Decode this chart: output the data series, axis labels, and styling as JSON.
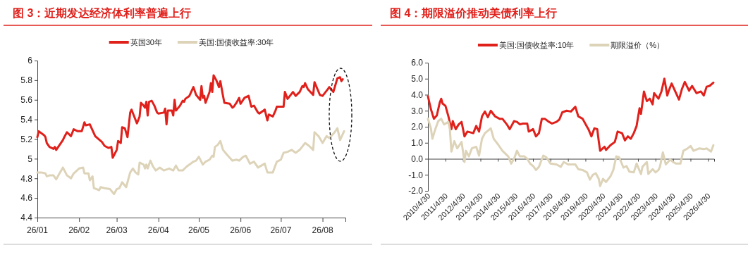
{
  "chart_data": [
    {
      "type": "line",
      "title": "图 3：近期发达经济体利率普遍上行",
      "legend": "top",
      "grid": false,
      "marker": "none",
      "line_style": "solid",
      "xlim": [
        "2026-01-01",
        "2026-08-18"
      ],
      "xticks": [
        {
          "value": "2026-01-01",
          "label": "26/01"
        },
        {
          "value": "2026-02-01",
          "label": "26/02"
        },
        {
          "value": "2026-03-01",
          "label": "26/03"
        },
        {
          "value": "2026-04-01",
          "label": "26/04"
        },
        {
          "value": "2026-05-01",
          "label": "26/05"
        },
        {
          "value": "2026-06-01",
          "label": "26/06"
        },
        {
          "value": "2026-07-01",
          "label": "26/07"
        },
        {
          "value": "2026-08-01",
          "label": "26/08"
        }
      ],
      "ylim": [
        4.4,
        6
      ],
      "yticks": [
        4.4,
        4.6,
        4.8,
        5,
        5.2,
        5.4,
        5.6,
        5.8,
        6
      ],
      "series": [
        {
          "name": "英国30年",
          "color": "#e0201b",
          "x": [
            "2026-01-01",
            "2026-01-02",
            "2026-01-06",
            "2026-01-07",
            "2026-01-08",
            "2026-01-10",
            "2026-01-13",
            "2026-01-14",
            "2026-01-15",
            "2026-01-20",
            "2026-01-21",
            "2026-01-23",
            "2026-01-26",
            "2026-01-28",
            "2026-01-31",
            "2026-02-03",
            "2026-02-05",
            "2026-02-06",
            "2026-02-09",
            "2026-02-13",
            "2026-02-18",
            "2026-02-20",
            "2026-02-23",
            "2026-02-25",
            "2026-02-26",
            "2026-03-01",
            "2026-03-02",
            "2026-03-04",
            "2026-03-05",
            "2026-03-07",
            "2026-03-09",
            "2026-03-11",
            "2026-03-12",
            "2026-03-14",
            "2026-03-16",
            "2026-03-18",
            "2026-03-19",
            "2026-03-21",
            "2026-03-22",
            "2026-03-23",
            "2026-03-24",
            "2026-03-25",
            "2026-03-27",
            "2026-03-29",
            "2026-03-31",
            "2026-04-01",
            "2026-04-05",
            "2026-04-06",
            "2026-04-07",
            "2026-04-08",
            "2026-04-11",
            "2026-04-12",
            "2026-04-13",
            "2026-04-14",
            "2026-04-17",
            "2026-04-19",
            "2026-04-20",
            "2026-04-21",
            "2026-04-24",
            "2026-04-27",
            "2026-04-29",
            "2026-05-02",
            "2026-05-03",
            "2026-05-04",
            "2026-05-05",
            "2026-05-06",
            "2026-05-09",
            "2026-05-10",
            "2026-05-11",
            "2026-05-12",
            "2026-05-14",
            "2026-05-16",
            "2026-05-17",
            "2026-05-19",
            "2026-05-20",
            "2026-05-24",
            "2026-05-26",
            "2026-05-27",
            "2026-05-29",
            "2026-05-31",
            "2026-06-01",
            "2026-06-04",
            "2026-06-07",
            "2026-06-09",
            "2026-06-11",
            "2026-06-14",
            "2026-06-15",
            "2026-06-19",
            "2026-06-21",
            "2026-06-22",
            "2026-06-25",
            "2026-06-27",
            "2026-06-28",
            "2026-07-03",
            "2026-07-04",
            "2026-07-06",
            "2026-07-10",
            "2026-07-12",
            "2026-07-15",
            "2026-07-17",
            "2026-07-18",
            "2026-07-19",
            "2026-07-21",
            "2026-07-25",
            "2026-07-26",
            "2026-07-30",
            "2026-08-01",
            "2026-08-05",
            "2026-08-06",
            "2026-08-09",
            "2026-08-12",
            "2026-08-14",
            "2026-08-15",
            "2026-08-16"
          ],
          "values": [
            5.22,
            5.28,
            5.24,
            5.22,
            5.16,
            5.12,
            5.1,
            5.12,
            5.09,
            5.19,
            5.22,
            5.27,
            5.23,
            5.3,
            5.28,
            5.28,
            5.37,
            5.34,
            5.35,
            5.23,
            5.17,
            5.13,
            5.11,
            5.12,
            5.01,
            5.09,
            5.18,
            5.16,
            5.32,
            5.31,
            5.22,
            5.47,
            5.5,
            5.43,
            5.36,
            5.43,
            5.57,
            5.54,
            5.52,
            5.58,
            5.44,
            5.58,
            5.59,
            5.54,
            5.47,
            5.46,
            5.47,
            5.51,
            5.35,
            5.49,
            5.49,
            5.44,
            5.6,
            5.49,
            5.54,
            5.59,
            5.58,
            5.61,
            5.64,
            5.73,
            5.65,
            5.6,
            5.74,
            5.62,
            5.64,
            5.57,
            5.68,
            5.77,
            5.68,
            5.85,
            5.8,
            5.73,
            5.79,
            5.64,
            5.57,
            5.56,
            5.52,
            5.53,
            5.57,
            5.62,
            5.56,
            5.62,
            5.64,
            5.53,
            5.54,
            5.47,
            5.46,
            5.5,
            5.39,
            5.45,
            5.43,
            5.49,
            5.53,
            5.53,
            5.68,
            5.61,
            5.68,
            5.64,
            5.68,
            5.74,
            5.73,
            5.77,
            5.71,
            5.65,
            5.78,
            5.65,
            5.64,
            5.71,
            5.73,
            5.68,
            5.82,
            5.83,
            5.79,
            5.81
          ]
        },
        {
          "name": "美国:国债收益率:30年",
          "color": "#ddd3b8",
          "x": [
            "2026-01-01",
            "2026-01-04",
            "2026-01-07",
            "2026-01-08",
            "2026-01-10",
            "2026-01-13",
            "2026-01-15",
            "2026-01-17",
            "2026-01-20",
            "2026-01-23",
            "2026-01-26",
            "2026-01-28",
            "2026-02-01",
            "2026-02-04",
            "2026-02-05",
            "2026-02-08",
            "2026-02-09",
            "2026-02-11",
            "2026-02-12",
            "2026-02-16",
            "2026-02-17",
            "2026-02-20",
            "2026-02-24",
            "2026-02-27",
            "2026-03-01",
            "2026-03-03",
            "2026-03-05",
            "2026-03-08",
            "2026-03-11",
            "2026-03-13",
            "2026-03-15",
            "2026-03-17",
            "2026-03-18",
            "2026-03-21",
            "2026-03-22",
            "2026-03-23",
            "2026-03-24",
            "2026-03-26",
            "2026-03-28",
            "2026-03-30",
            "2026-04-02",
            "2026-04-05",
            "2026-04-09",
            "2026-04-12",
            "2026-04-14",
            "2026-04-16",
            "2026-04-19",
            "2026-04-22",
            "2026-04-24",
            "2026-04-27",
            "2026-04-29",
            "2026-05-01",
            "2026-05-04",
            "2026-05-06",
            "2026-05-09",
            "2026-05-11",
            "2026-05-12",
            "2026-05-13",
            "2026-05-15",
            "2026-05-17",
            "2026-05-19",
            "2026-05-22",
            "2026-05-26",
            "2026-05-29",
            "2026-05-31",
            "2026-06-03",
            "2026-06-05",
            "2026-06-08",
            "2026-06-11",
            "2026-06-14",
            "2026-06-19",
            "2026-06-21",
            "2026-06-25",
            "2026-06-28",
            "2026-07-01",
            "2026-07-03",
            "2026-07-06",
            "2026-07-09",
            "2026-07-12",
            "2026-07-15",
            "2026-07-19",
            "2026-07-22",
            "2026-07-25",
            "2026-07-26",
            "2026-07-29",
            "2026-08-01",
            "2026-08-04",
            "2026-08-06",
            "2026-08-08",
            "2026-08-10",
            "2026-08-12",
            "2026-08-14",
            "2026-08-17"
          ],
          "values": [
            4.86,
            4.86,
            4.85,
            4.82,
            4.83,
            4.83,
            4.79,
            4.84,
            4.91,
            4.83,
            4.8,
            4.85,
            4.9,
            4.91,
            4.85,
            4.85,
            4.78,
            4.82,
            4.7,
            4.68,
            4.71,
            4.7,
            4.69,
            4.64,
            4.69,
            4.7,
            4.76,
            4.71,
            4.86,
            4.9,
            4.86,
            4.84,
            4.96,
            4.94,
            4.9,
            4.94,
            4.9,
            4.98,
            4.92,
            4.88,
            4.91,
            4.88,
            4.9,
            4.88,
            4.93,
            4.88,
            4.88,
            4.92,
            4.94,
            4.97,
            4.98,
            5.02,
            4.94,
            4.97,
            4.99,
            5.03,
            5.02,
            5.12,
            5.14,
            5.18,
            5.09,
            5.04,
            4.98,
            4.99,
            4.98,
            5.02,
            5.03,
            4.95,
            4.97,
            4.91,
            4.95,
            4.86,
            4.86,
            4.97,
            4.99,
            5.06,
            5.07,
            5.09,
            5.06,
            5.09,
            5.16,
            5.13,
            5.09,
            5.27,
            5.23,
            5.16,
            5.23,
            5.21,
            5.24,
            5.27,
            5.31,
            5.19,
            5.28
          ]
        }
      ]
    },
    {
      "type": "line",
      "title": "图 4：期限溢价推动美债利率上行",
      "legend": "top",
      "grid": false,
      "marker": "none",
      "line_style": "solid",
      "xlim": [
        "2010-04-30",
        "2026-09-05"
      ],
      "xticks": [
        {
          "value": "2010-04-30",
          "label": "2010/4/30"
        },
        {
          "value": "2011-04-30",
          "label": "2011/4/30"
        },
        {
          "value": "2012-04-30",
          "label": "2012/4/30"
        },
        {
          "value": "2013-04-30",
          "label": "2013/4/30"
        },
        {
          "value": "2014-04-30",
          "label": "2014/4/30"
        },
        {
          "value": "2015-04-30",
          "label": "2015/4/30"
        },
        {
          "value": "2016-04-30",
          "label": "2016/4/30"
        },
        {
          "value": "2017-04-30",
          "label": "2017/4/30"
        },
        {
          "value": "2018-04-30",
          "label": "2018/4/30"
        },
        {
          "value": "2019-04-30",
          "label": "2019/4/30"
        },
        {
          "value": "2020-04-30",
          "label": "2020/4/30"
        },
        {
          "value": "2021-04-30",
          "label": "2021/4/30"
        },
        {
          "value": "2022-04-30",
          "label": "2022/4/30"
        },
        {
          "value": "2023-04-30",
          "label": "2023/4/30"
        },
        {
          "value": "2024-04-30",
          "label": "2024/4/30"
        },
        {
          "value": "2025-04-30",
          "label": "2025/4/30"
        },
        {
          "value": "2026-04-30",
          "label": "2026/4/30"
        }
      ],
      "ylim": [
        -2,
        6
      ],
      "yticks": [
        {
          "value": -2,
          "label": "-2.0"
        },
        {
          "value": -1,
          "label": "-1.0"
        },
        {
          "value": 0,
          "label": "0.0"
        },
        {
          "value": 1,
          "label": "1.0"
        },
        {
          "value": 2,
          "label": "2.0"
        },
        {
          "value": 3,
          "label": "3.0"
        },
        {
          "value": 4,
          "label": "4.0"
        },
        {
          "value": 5,
          "label": "5.0"
        },
        {
          "value": 6,
          "label": "6.0"
        }
      ],
      "series": [
        {
          "name": "美国:国债收益率:10年",
          "color": "#e0201b",
          "x": [
            "2010-04-30",
            "2010-07",
            "2010-09",
            "2010-11",
            "2011-01",
            "2011-02",
            "2011-03",
            "2011-05",
            "2011-07",
            "2011-09",
            "2011-10",
            "2011-12",
            "2012-02",
            "2012-04",
            "2012-06",
            "2012-08",
            "2012-12",
            "2013-02",
            "2013-04",
            "2013-06",
            "2013-08",
            "2013-10",
            "2013-12",
            "2014-03",
            "2014-06",
            "2014-08",
            "2014-11",
            "2015-01",
            "2015-04",
            "2015-06",
            "2015-08",
            "2015-10",
            "2016-01",
            "2016-02",
            "2016-05",
            "2016-07",
            "2016-09",
            "2016-11",
            "2017-01",
            "2017-04",
            "2017-06",
            "2017-09",
            "2017-11",
            "2018-01",
            "2018-04",
            "2018-07",
            "2018-10",
            "2018-12",
            "2019-03",
            "2019-06",
            "2019-07",
            "2019-09",
            "2019-11",
            "2020-01",
            "2020-02",
            "2020-03",
            "2020-06",
            "2020-07",
            "2020-10",
            "2021-01",
            "2021-03",
            "2021-06",
            "2021-08",
            "2021-10",
            "2021-12",
            "2022-02",
            "2022-04",
            "2022-06",
            "2022-07",
            "2022-09",
            "2022-11",
            "2023-01",
            "2023-03",
            "2023-04",
            "2023-07",
            "2023-09",
            "2023-11",
            "2024-01",
            "2024-02",
            "2024-04",
            "2024-07",
            "2024-09",
            "2024-11",
            "2025-01",
            "2025-04",
            "2025-06",
            "2025-09",
            "2025-12",
            "2026-02",
            "2026-04",
            "2026-06",
            "2026-08-20"
          ],
          "values": [
            3.9,
            3.1,
            2.5,
            2.7,
            3.5,
            3.75,
            3.45,
            3.3,
            2.65,
            1.85,
            2.35,
            1.85,
            2.15,
            2.3,
            1.4,
            1.7,
            1.6,
            2.05,
            1.7,
            2.65,
            2.95,
            2.6,
            3.0,
            2.65,
            2.5,
            2.5,
            2.15,
            1.85,
            2.35,
            2.3,
            2.15,
            2.2,
            2.2,
            1.7,
            1.85,
            1.4,
            1.6,
            2.5,
            2.5,
            2.3,
            2.2,
            2.3,
            2.45,
            2.9,
            3.0,
            2.95,
            3.25,
            2.65,
            2.5,
            2.0,
            1.85,
            1.4,
            1.9,
            1.85,
            1.1,
            0.5,
            0.75,
            0.55,
            0.85,
            1.05,
            1.7,
            1.6,
            1.15,
            1.4,
            1.25,
            1.6,
            2.05,
            3.15,
            2.8,
            4.2,
            3.6,
            3.75,
            3.4,
            4.1,
            3.75,
            4.2,
            5.0,
            3.95,
            4.25,
            4.7,
            4.1,
            3.7,
            4.35,
            4.8,
            4.25,
            4.55,
            4.1,
            4.2,
            3.95,
            4.5,
            4.55,
            4.75
          ]
        },
        {
          "name": "期限溢价（%）",
          "color": "#ddd3b8",
          "x": [
            "2010-04-30",
            "2010-07",
            "2010-08",
            "2010-10",
            "2010-12",
            "2011-02",
            "2011-04",
            "2011-07",
            "2011-08",
            "2011-09",
            "2011-11",
            "2012-01",
            "2012-04",
            "2012-06",
            "2012-07",
            "2012-09",
            "2012-11",
            "2013-02",
            "2013-04",
            "2013-06",
            "2013-08",
            "2013-12",
            "2014-02",
            "2014-05",
            "2014-08",
            "2014-12",
            "2015-02",
            "2015-04",
            "2015-06",
            "2015-08",
            "2015-11",
            "2016-01",
            "2016-03",
            "2016-05",
            "2016-07",
            "2016-09",
            "2016-12",
            "2017-02",
            "2017-05",
            "2017-09",
            "2017-12",
            "2018-02",
            "2018-05",
            "2018-10",
            "2018-12",
            "2019-03",
            "2019-06",
            "2019-08",
            "2019-10",
            "2019-12",
            "2020-02",
            "2020-03",
            "2020-05",
            "2020-07",
            "2020-10",
            "2020-12",
            "2021-02",
            "2021-04",
            "2021-07",
            "2021-09",
            "2021-11",
            "2022-02",
            "2022-04",
            "2022-07",
            "2022-08",
            "2022-11",
            "2022-12",
            "2023-03",
            "2023-05",
            "2023-07",
            "2023-08",
            "2023-10",
            "2023-12",
            "2024-03",
            "2024-05",
            "2024-07",
            "2024-10",
            "2024-12",
            "2025-03",
            "2025-05",
            "2025-07",
            "2025-11",
            "2026-02",
            "2026-04",
            "2026-07",
            "2026-08-20"
          ],
          "values": [
            2.5,
            1.9,
            1.25,
            1.85,
            2.35,
            2.5,
            2.15,
            2.3,
            1.85,
            0.45,
            1.1,
            0.65,
            1.05,
            -0.2,
            0.5,
            0.15,
            0.65,
            0.75,
            0.2,
            1.25,
            1.6,
            1.9,
            1.25,
            0.9,
            0.5,
            0.15,
            -0.3,
            0.0,
            0.5,
            0.15,
            0.15,
            0.0,
            -0.3,
            -0.45,
            -0.7,
            -0.5,
            0.2,
            0.1,
            -0.3,
            -0.35,
            -0.5,
            -0.2,
            -0.35,
            -0.35,
            -0.65,
            -0.7,
            -0.85,
            -1.3,
            -1.0,
            -0.9,
            -1.25,
            -1.7,
            -1.25,
            -1.45,
            -1.1,
            -0.7,
            0.15,
            0.1,
            -0.55,
            -0.45,
            -0.8,
            -0.85,
            -0.3,
            -0.95,
            -0.5,
            -0.2,
            -0.95,
            -0.65,
            -0.85,
            -0.7,
            -0.5,
            0.4,
            -0.35,
            -0.05,
            -0.2,
            -0.3,
            -0.3,
            0.5,
            0.65,
            0.8,
            0.5,
            0.65,
            0.6,
            0.65,
            0.45,
            0.85
          ]
        }
      ]
    }
  ]
}
